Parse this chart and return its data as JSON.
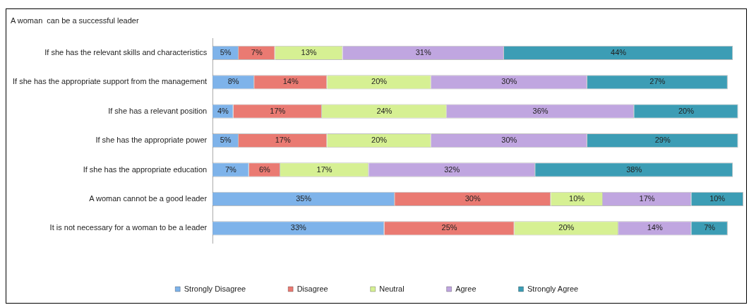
{
  "chart_data": {
    "type": "bar",
    "orientation": "horizontal",
    "stacked": true,
    "title": "A woman  can be a successful leader",
    "categories": [
      "If she has the relevant skills and characteristics",
      "If she has the appropriate support from the management",
      "If she has a relevant position",
      "If she has the appropriate power",
      "If she has the appropriate education",
      "A woman cannot be a good leader",
      "It is not necessary for a woman to be a leader"
    ],
    "xlim": [
      0,
      102
    ],
    "tick_labels": "y",
    "legend": "bottom",
    "grid": false,
    "series": [
      {
        "name": "Strongly Disagree",
        "color": "#7eb3ea",
        "values": [
          5,
          8,
          4,
          5,
          7,
          35,
          33
        ],
        "value_labels": [
          "5%",
          "8%",
          "4%",
          "5%",
          "7%",
          "35%",
          "33%"
        ]
      },
      {
        "name": "Disagree",
        "color": "#ea7a72",
        "values": [
          7,
          14,
          17,
          17,
          6,
          30,
          25
        ],
        "value_labels": [
          "7%",
          "14%",
          "17%",
          "17%",
          "6%",
          "30%",
          "25%"
        ]
      },
      {
        "name": "Neutral",
        "color": "#d6f093",
        "values": [
          13,
          20,
          24,
          20,
          17,
          10,
          20
        ],
        "value_labels": [
          "13%",
          "20%",
          "24%",
          "20%",
          "17%",
          "10%",
          "20%"
        ]
      },
      {
        "name": "Agree",
        "color": "#c0a6e0",
        "values": [
          31,
          30,
          36,
          30,
          32,
          17,
          14
        ],
        "value_labels": [
          "31%",
          "30%",
          "36%",
          "30%",
          "32%",
          "17%",
          "14%"
        ]
      },
      {
        "name": "Strongly Agree",
        "color": "#3c9db5",
        "values": [
          44,
          27,
          20,
          29,
          38,
          10,
          7
        ],
        "value_labels": [
          "44%",
          "27%",
          "20%",
          "29%",
          "38%",
          "10%",
          "7%"
        ]
      }
    ]
  }
}
